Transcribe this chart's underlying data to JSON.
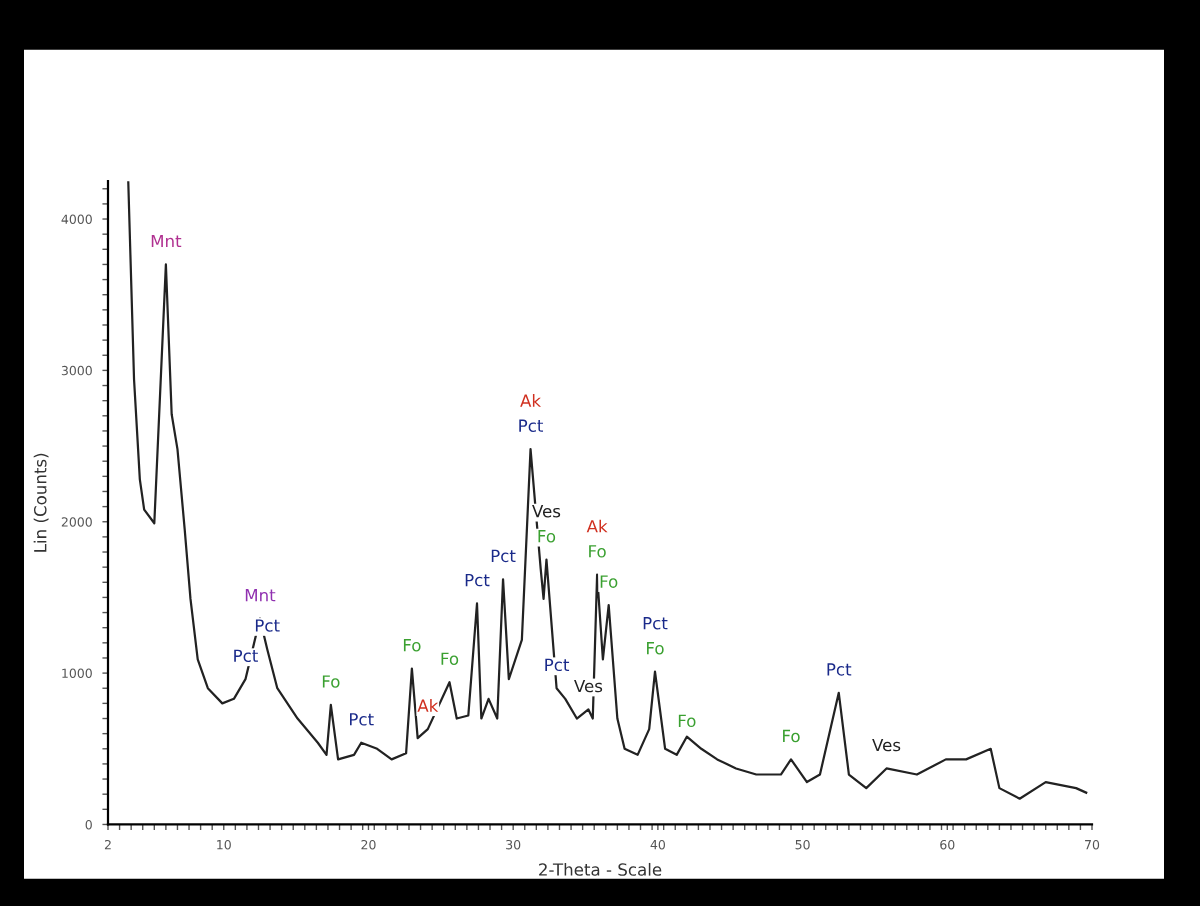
{
  "chart_data": {
    "type": "line",
    "xlabel": "2-Theta - Scale",
    "ylabel": "Lin (Counts)",
    "xlim": [
      2,
      70
    ],
    "ylim": [
      0,
      4250
    ],
    "xticks": [
      2,
      10,
      20,
      30,
      40,
      50,
      60,
      70
    ],
    "yticks": [
      0,
      1000,
      2000,
      3000,
      4000
    ],
    "grid": false,
    "legend": false,
    "marker": "none",
    "line_style": "solid",
    "series": [
      {
        "color": "#222222",
        "x": [
          3.4,
          3.8,
          4.2,
          4.5,
          5.2,
          6.0,
          6.4,
          6.8,
          7.3,
          7.7,
          8.2,
          8.9,
          9.9,
          10.7,
          11.5,
          12.5,
          13.0,
          13.7,
          15.1,
          16.5,
          17.1,
          17.4,
          17.9,
          19.0,
          19.5,
          20.6,
          21.6,
          22.6,
          23.0,
          23.4,
          24.1,
          25.6,
          26.1,
          26.9,
          27.5,
          27.8,
          28.3,
          28.9,
          29.3,
          29.7,
          30.6,
          31.2,
          31.9,
          32.1,
          32.3,
          33.0,
          33.6,
          34.4,
          35.2,
          35.5,
          35.8,
          36.2,
          36.6,
          37.2,
          37.7,
          38.6,
          39.4,
          39.8,
          40.5,
          41.3,
          42.0,
          43.0,
          44.1,
          45.4,
          46.8,
          48.5,
          49.2,
          50.3,
          51.2,
          52.5,
          53.2,
          54.4,
          55.8,
          57.9,
          59.9,
          61.3,
          63.0,
          63.6,
          65.0,
          66.8,
          68.9,
          69.6
        ],
        "values": [
          4250,
          2940,
          2280,
          2080,
          1990,
          3700,
          2710,
          2480,
          1950,
          1490,
          1090,
          900,
          800,
          830,
          960,
          1360,
          1160,
          900,
          700,
          540,
          460,
          790,
          430,
          460,
          540,
          500,
          430,
          470,
          1030,
          570,
          630,
          940,
          700,
          720,
          1460,
          700,
          830,
          700,
          1620,
          960,
          1220,
          2480,
          1690,
          1490,
          1750,
          900,
          830,
          700,
          760,
          700,
          1650,
          1090,
          1450,
          700,
          500,
          460,
          630,
          1010,
          500,
          460,
          580,
          500,
          430,
          370,
          330,
          330,
          430,
          280,
          330,
          870,
          330,
          240,
          370,
          330,
          430,
          430,
          500,
          240,
          170,
          280,
          240,
          210
        ]
      }
    ],
    "annotations": [
      {
        "text": "Mnt",
        "x": 6.0,
        "y": 3700
      },
      {
        "text": "Pct",
        "x": 11.5,
        "y": 960
      },
      {
        "text": "Mnt",
        "x": 12.5,
        "y": 1360
      },
      {
        "text": "Pct",
        "x": 13.0,
        "y": 1160
      },
      {
        "text": "Fo",
        "x": 17.4,
        "y": 790
      },
      {
        "text": "Pct",
        "x": 19.5,
        "y": 540
      },
      {
        "text": "Fo",
        "x": 23.0,
        "y": 1030
      },
      {
        "text": "Ak",
        "x": 24.1,
        "y": 630
      },
      {
        "text": "Fo",
        "x": 25.6,
        "y": 940
      },
      {
        "text": "Pct",
        "x": 27.5,
        "y": 1460
      },
      {
        "text": "Pct",
        "x": 29.3,
        "y": 1620
      },
      {
        "text": "Pct",
        "x": 31.2,
        "y": 2480
      },
      {
        "text": "Ak",
        "x": 31.2,
        "y": 2480
      },
      {
        "text": "Fo",
        "x": 32.3,
        "y": 1750
      },
      {
        "text": "Ves",
        "x": 32.3,
        "y": 1750
      },
      {
        "text": "Pct",
        "x": 33.0,
        "y": 900
      },
      {
        "text": "Ves",
        "x": 35.2,
        "y": 760
      },
      {
        "text": "Fo",
        "x": 35.8,
        "y": 1650
      },
      {
        "text": "Ak",
        "x": 35.8,
        "y": 1650
      },
      {
        "text": "Fo",
        "x": 36.6,
        "y": 1450
      },
      {
        "text": "Fo",
        "x": 39.8,
        "y": 1010
      },
      {
        "text": "Pct",
        "x": 39.8,
        "y": 1010
      },
      {
        "text": "Fo",
        "x": 42.0,
        "y": 530
      },
      {
        "text": "Fo",
        "x": 49.2,
        "y": 430
      },
      {
        "text": "Pct",
        "x": 52.5,
        "y": 870
      },
      {
        "text": "Ves",
        "x": 55.8,
        "y": 370
      }
    ]
  }
}
